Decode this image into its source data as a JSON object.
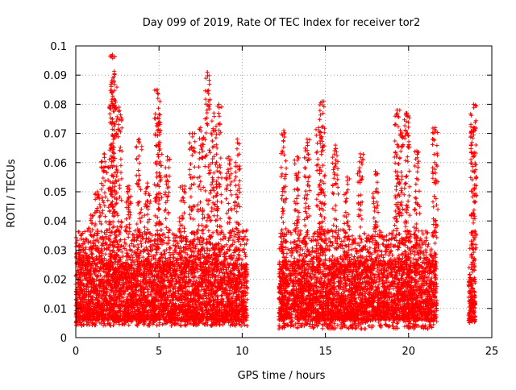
{
  "chart_data": {
    "type": "scatter",
    "title": "Day 099 of 2019, Rate Of TEC Index for receiver tor2",
    "xlabel": "GPS time / hours",
    "ylabel": "ROTI / TECUs",
    "xlim": [
      0,
      25
    ],
    "ylim": [
      0,
      0.1
    ],
    "x_ticks": [
      0,
      5,
      10,
      15,
      20,
      25
    ],
    "x_tick_labels": [
      "0",
      "5",
      "10",
      "15",
      "20",
      "25"
    ],
    "y_ticks": [
      0,
      0.01,
      0.02,
      0.03,
      0.04,
      0.05,
      0.06,
      0.07,
      0.08,
      0.09,
      0.1
    ],
    "y_tick_labels": [
      "0",
      "0.01",
      "0.02",
      "0.03",
      "0.04",
      "0.05",
      "0.06",
      "0.07",
      "0.08",
      "0.09",
      "0.1"
    ],
    "grid": true,
    "marker": "+",
    "marker_color": "#ff0000",
    "data_segments": [
      {
        "x_start": 0.0,
        "x_end": 10.3,
        "y_min": 0.004,
        "y_typical": [
          0.006,
          0.025
        ]
      },
      {
        "x_start": 12.2,
        "x_end": 21.7,
        "y_min": 0.003,
        "y_typical": [
          0.006,
          0.025
        ]
      },
      {
        "x_start": 23.6,
        "x_end": 24.0,
        "y_min": 0.005,
        "y_typical": [
          0.006,
          0.02
        ]
      }
    ],
    "peaks": [
      {
        "x": 0.3,
        "y": 0.035
      },
      {
        "x": 0.9,
        "y": 0.042
      },
      {
        "x": 1.3,
        "y": 0.05
      },
      {
        "x": 1.7,
        "y": 0.063
      },
      {
        "x": 2.1,
        "y": 0.066
      },
      {
        "x": 2.2,
        "y": 0.097
      },
      {
        "x": 2.3,
        "y": 0.088
      },
      {
        "x": 2.6,
        "y": 0.079
      },
      {
        "x": 3.2,
        "y": 0.052
      },
      {
        "x": 3.8,
        "y": 0.068
      },
      {
        "x": 4.3,
        "y": 0.053
      },
      {
        "x": 4.9,
        "y": 0.085
      },
      {
        "x": 5.0,
        "y": 0.075
      },
      {
        "x": 5.5,
        "y": 0.062
      },
      {
        "x": 6.4,
        "y": 0.052
      },
      {
        "x": 7.0,
        "y": 0.07
      },
      {
        "x": 7.5,
        "y": 0.072
      },
      {
        "x": 7.9,
        "y": 0.091
      },
      {
        "x": 8.3,
        "y": 0.077
      },
      {
        "x": 8.6,
        "y": 0.08
      },
      {
        "x": 9.2,
        "y": 0.062
      },
      {
        "x": 9.7,
        "y": 0.068
      },
      {
        "x": 12.5,
        "y": 0.071
      },
      {
        "x": 13.3,
        "y": 0.062
      },
      {
        "x": 13.9,
        "y": 0.068
      },
      {
        "x": 14.6,
        "y": 0.072
      },
      {
        "x": 14.8,
        "y": 0.081
      },
      {
        "x": 15.6,
        "y": 0.066
      },
      {
        "x": 16.3,
        "y": 0.055
      },
      {
        "x": 17.1,
        "y": 0.063
      },
      {
        "x": 18.0,
        "y": 0.057
      },
      {
        "x": 19.3,
        "y": 0.078
      },
      {
        "x": 19.5,
        "y": 0.071
      },
      {
        "x": 19.9,
        "y": 0.077
      },
      {
        "x": 20.5,
        "y": 0.064
      },
      {
        "x": 21.6,
        "y": 0.072
      },
      {
        "x": 23.9,
        "y": 0.08
      },
      {
        "x": 23.9,
        "y": 0.072
      }
    ]
  }
}
